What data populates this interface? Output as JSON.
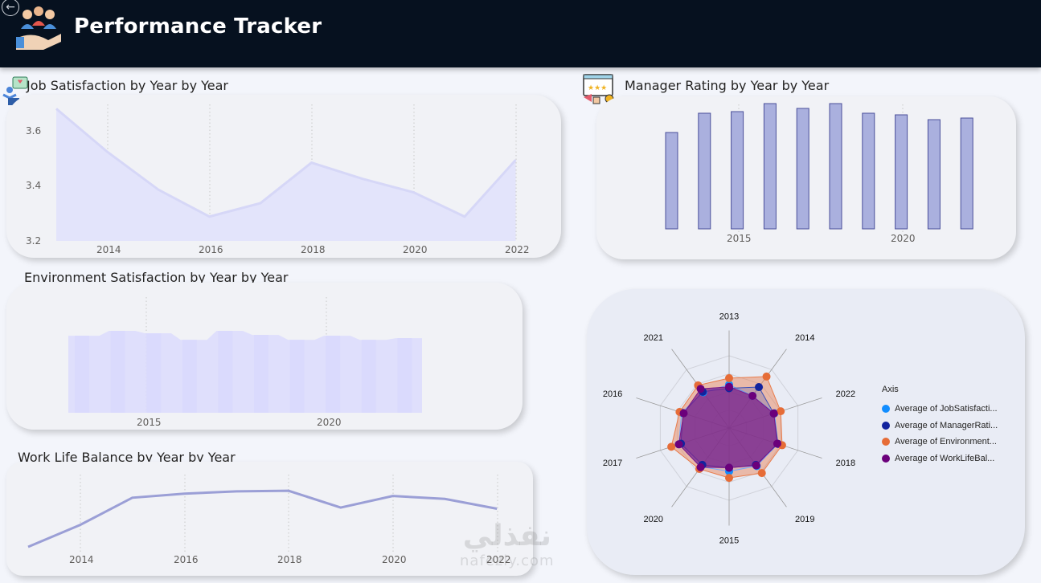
{
  "header": {
    "title": "Performance Tracker",
    "back_glyph": "←",
    "logo_icon": "team-presentation-icon",
    "background": "#06111f"
  },
  "watermark": {
    "arabic": "نفذلي",
    "latin": "nafezly.com"
  },
  "charts": {
    "job": {
      "title": "Job Satisfaction by Year by Year",
      "icon": "satisfaction-survey-icon",
      "x_ticks": [
        "2014",
        "2016",
        "2018",
        "2020",
        "2022"
      ],
      "y_ticks": [
        "3.6",
        "3.4",
        "3.2"
      ]
    },
    "manager": {
      "title": "Manager Rating by Year by Year",
      "icon": "rating-board-icon",
      "x_ticks": [
        "2015",
        "2020"
      ]
    },
    "env": {
      "title": "Environment Satisfaction by Year by Year",
      "x_ticks": [
        "2015",
        "2020"
      ]
    },
    "wlb": {
      "title": "Work Life Balance by Year by Year",
      "x_ticks": [
        "2014",
        "2016",
        "2018",
        "2020",
        "2022"
      ]
    },
    "radar": {
      "axis_labels": [
        "2013",
        "2014",
        "2022",
        "2018",
        "2019",
        "2015",
        "2020",
        "2017",
        "2016",
        "2021"
      ],
      "legend_title": "Axis",
      "legend": [
        {
          "label": "Average of JobSatisfacti...",
          "color": "#118dff"
        },
        {
          "label": "Average of ManagerRati...",
          "color": "#12239e"
        },
        {
          "label": "Average of Environment...",
          "color": "#e66c37"
        },
        {
          "label": "Average of WorkLifeBal...",
          "color": "#6b007b"
        }
      ]
    }
  },
  "chart_data": [
    {
      "type": "area",
      "title": "Job Satisfaction by Year by Year",
      "x": [
        2013,
        2014,
        2015,
        2016,
        2017,
        2018,
        2019,
        2020,
        2021,
        2022
      ],
      "values": [
        3.69,
        3.53,
        3.39,
        3.29,
        3.34,
        3.49,
        3.43,
        3.38,
        3.29,
        3.5
      ],
      "ylim": [
        3.2,
        3.7
      ],
      "color": "#c8c8f5",
      "grid": "x-dotted"
    },
    {
      "type": "bar",
      "title": "Manager Rating by Year by Year",
      "x": [
        2013,
        2014,
        2015,
        2016,
        2017,
        2018,
        2019,
        2020,
        2021,
        2022
      ],
      "values": [
        0.6,
        0.72,
        0.73,
        0.78,
        0.75,
        0.78,
        0.72,
        0.71,
        0.68,
        0.69
      ],
      "ylim": [
        0,
        0.85
      ],
      "color": "#aab0de",
      "edge_color": "#4a4f9a"
    },
    {
      "type": "area",
      "title": "Environment Satisfaction by Year by Year",
      "x": [
        2013,
        2014,
        2015,
        2016,
        2017,
        2018,
        2019,
        2020,
        2021,
        2022
      ],
      "values": [
        0.94,
        1.0,
        0.97,
        0.89,
        1.0,
        0.95,
        0.89,
        0.94,
        0.89,
        0.91
      ],
      "ylim": [
        0,
        1.0
      ],
      "color": "#dcdcfd"
    },
    {
      "type": "line",
      "title": "Work Life Balance by Year by Year",
      "x": [
        2013,
        2014,
        2015,
        2016,
        2017,
        2018,
        2019,
        2020,
        2021,
        2022
      ],
      "values": [
        0.0,
        0.38,
        0.85,
        0.92,
        0.96,
        0.97,
        0.68,
        0.88,
        0.83,
        0.66
      ],
      "ylim": [
        0,
        1.1
      ],
      "color": "#9b9fd6"
    },
    {
      "type": "radar",
      "axes": [
        "2013",
        "2014",
        "2022",
        "2018",
        "2019",
        "2015",
        "2020",
        "2017",
        "2016",
        "2021"
      ],
      "series": [
        {
          "name": "Average of JobSatisfacti...",
          "values": [
            0.6,
            0.55,
            0.66,
            0.71,
            0.65,
            0.6,
            0.66,
            0.73,
            0.69,
            0.61
          ]
        },
        {
          "name": "Average of ManagerRati...",
          "values": [
            0.55,
            0.7,
            0.65,
            0.71,
            0.63,
            0.55,
            0.63,
            0.7,
            0.67,
            0.62
          ]
        },
        {
          "name": "Average of Environment...",
          "values": [
            0.69,
            0.88,
            0.75,
            0.77,
            0.77,
            0.69,
            0.7,
            0.84,
            0.72,
            0.73
          ]
        },
        {
          "name": "Average of WorkLifeBal...",
          "values": [
            0.57,
            0.55,
            0.65,
            0.7,
            0.64,
            0.55,
            0.67,
            0.73,
            0.66,
            0.67
          ]
        }
      ]
    }
  ]
}
